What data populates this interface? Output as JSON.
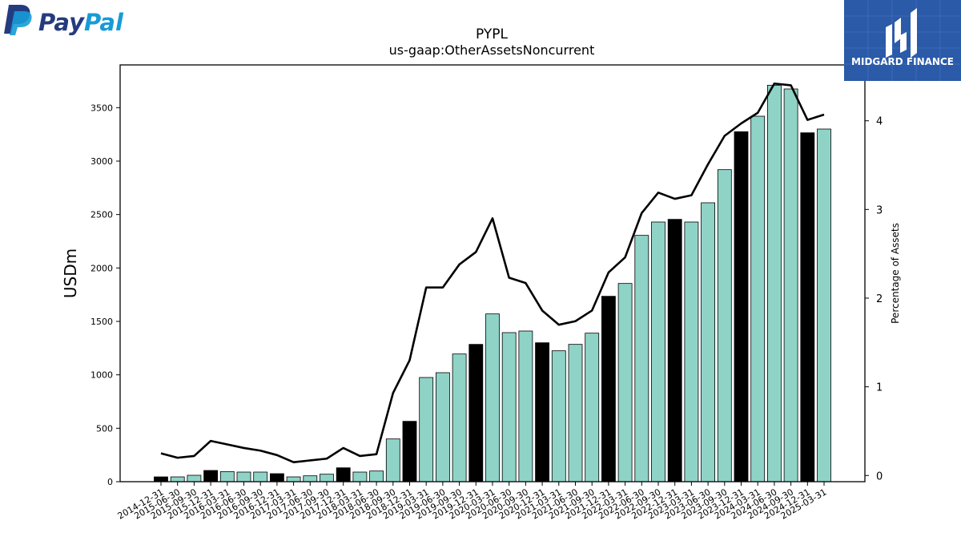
{
  "brand": {
    "company_logo_text": "PayPal",
    "company_logo_colors": [
      "#253b80",
      "#179bd7"
    ],
    "publisher_logo_text": "MIDGARD FINANCE",
    "publisher_logo_color": "#2a5aa8"
  },
  "chart_data": {
    "type": "bar+line",
    "title": "PYPL",
    "subtitle": "us-gaap:OtherAssetsNoncurrent",
    "ylabel": "USDm",
    "y2label": "Percentage of Assets",
    "ylim": [
      0,
      3900
    ],
    "y2lim": [
      -0.07,
      4.63
    ],
    "yticks": [
      0,
      500,
      1000,
      1500,
      2000,
      2500,
      3000,
      3500
    ],
    "y2ticks": [
      0,
      1,
      2,
      3,
      4
    ],
    "grid": false,
    "bar_colors": {
      "annual": "#000000",
      "quarterly": "#8fd3c7"
    },
    "line_color": "#000000",
    "categories": [
      "2014-12-31",
      "2015-06-30",
      "2015-09-30",
      "2015-12-31",
      "2016-03-31",
      "2016-06-30",
      "2016-09-30",
      "2016-12-31",
      "2017-03-31",
      "2017-06-30",
      "2017-09-30",
      "2017-12-31",
      "2018-03-31",
      "2018-06-30",
      "2018-09-30",
      "2018-12-31",
      "2019-03-31",
      "2019-06-30",
      "2019-09-30",
      "2019-12-31",
      "2020-03-31",
      "2020-06-30",
      "2020-09-30",
      "2020-12-31",
      "2021-03-31",
      "2021-06-30",
      "2021-09-30",
      "2021-12-31",
      "2022-03-31",
      "2022-06-30",
      "2022-09-30",
      "2022-12-31",
      "2023-03-31",
      "2023-06-30",
      "2023-09-30",
      "2023-12-31",
      "2024-03-31",
      "2024-06-30",
      "2024-09-30",
      "2024-12-31",
      "2025-03-31"
    ],
    "annual_flags": [
      1,
      0,
      0,
      1,
      0,
      0,
      0,
      1,
      0,
      0,
      0,
      1,
      0,
      0,
      0,
      1,
      0,
      0,
      0,
      1,
      0,
      0,
      0,
      1,
      0,
      0,
      0,
      1,
      0,
      0,
      0,
      1,
      0,
      0,
      0,
      1,
      0,
      0,
      0,
      1,
      0
    ],
    "values": [
      45,
      45,
      60,
      105,
      95,
      90,
      90,
      75,
      45,
      55,
      70,
      130,
      90,
      100,
      400,
      565,
      975,
      1020,
      1195,
      1285,
      1570,
      1395,
      1410,
      1300,
      1225,
      1285,
      1390,
      1735,
      1855,
      2305,
      2430,
      2455,
      2430,
      2610,
      2920,
      3275,
      3420,
      3710,
      3675,
      3265,
      3300
    ],
    "pct_values": [
      0.25,
      0.2,
      0.22,
      0.39,
      0.35,
      0.31,
      0.28,
      0.23,
      0.15,
      0.17,
      0.19,
      0.31,
      0.22,
      0.24,
      0.93,
      1.3,
      2.12,
      2.12,
      2.38,
      2.52,
      2.9,
      2.23,
      2.17,
      1.86,
      1.7,
      1.74,
      1.86,
      2.29,
      2.46,
      2.96,
      3.19,
      3.12,
      3.16,
      3.51,
      3.83,
      3.97,
      4.09,
      4.42,
      4.4,
      4.01,
      4.07
    ]
  }
}
